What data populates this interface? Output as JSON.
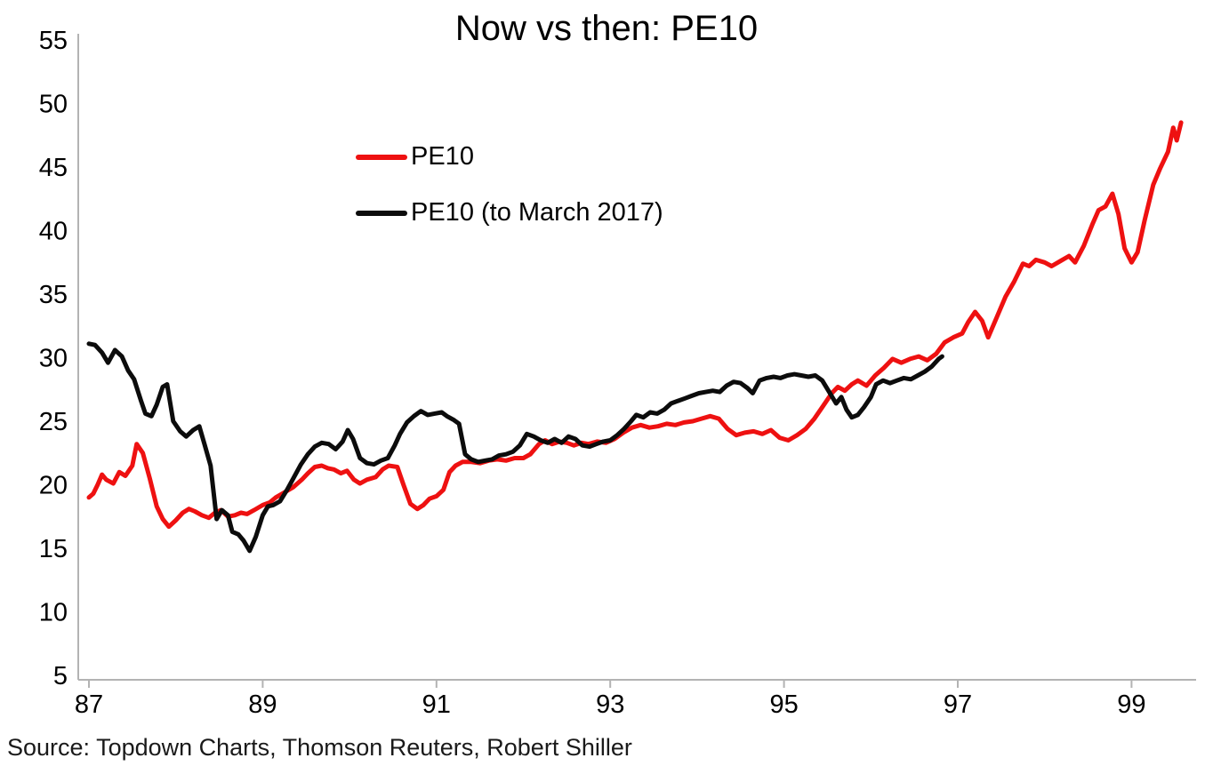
{
  "title": "Now vs then: PE10",
  "source": "Source: Topdown Charts, Thomson Reuters, Robert Shiller",
  "legend": [
    {
      "label": "PE10",
      "color": "#ee1111"
    },
    {
      "label": "PE10 (to March 2017)",
      "color": "#0c0c0c"
    }
  ],
  "chart_data": {
    "type": "line",
    "title": "Now vs then: PE10",
    "xlabel": "",
    "ylabel": "",
    "xlim": [
      86.85,
      99.8
    ],
    "ylim": [
      5,
      55
    ],
    "xticks": [
      87,
      89,
      91,
      93,
      95,
      97,
      99
    ],
    "yticks": [
      5,
      10,
      15,
      20,
      25,
      30,
      35,
      40,
      45,
      50,
      55
    ],
    "grid": false,
    "legend_position": "upper-left-inside",
    "axis_color": "#b3b3b3",
    "series": [
      {
        "name": "PE10",
        "color": "#ee1111",
        "points": [
          [
            87.0,
            19.0
          ],
          [
            87.05,
            19.3
          ],
          [
            87.1,
            20.0
          ],
          [
            87.15,
            20.8
          ],
          [
            87.2,
            20.4
          ],
          [
            87.28,
            20.1
          ],
          [
            87.35,
            21.0
          ],
          [
            87.42,
            20.7
          ],
          [
            87.5,
            21.5
          ],
          [
            87.55,
            23.2
          ],
          [
            87.62,
            22.5
          ],
          [
            87.7,
            20.5
          ],
          [
            87.78,
            18.3
          ],
          [
            87.85,
            17.3
          ],
          [
            87.92,
            16.7
          ],
          [
            88.0,
            17.2
          ],
          [
            88.08,
            17.8
          ],
          [
            88.15,
            18.1
          ],
          [
            88.22,
            17.9
          ],
          [
            88.3,
            17.6
          ],
          [
            88.38,
            17.4
          ],
          [
            88.45,
            17.8
          ],
          [
            88.52,
            18.0
          ],
          [
            88.6,
            17.5
          ],
          [
            88.68,
            17.6
          ],
          [
            88.75,
            17.8
          ],
          [
            88.82,
            17.7
          ],
          [
            88.9,
            18.0
          ],
          [
            89.0,
            18.4
          ],
          [
            89.08,
            18.6
          ],
          [
            89.15,
            19.0
          ],
          [
            89.25,
            19.4
          ],
          [
            89.35,
            19.8
          ],
          [
            89.45,
            20.4
          ],
          [
            89.52,
            20.9
          ],
          [
            89.6,
            21.4
          ],
          [
            89.68,
            21.5
          ],
          [
            89.75,
            21.3
          ],
          [
            89.82,
            21.2
          ],
          [
            89.9,
            20.9
          ],
          [
            89.97,
            21.1
          ],
          [
            90.05,
            20.4
          ],
          [
            90.12,
            20.1
          ],
          [
            90.2,
            20.4
          ],
          [
            90.3,
            20.6
          ],
          [
            90.38,
            21.2
          ],
          [
            90.45,
            21.5
          ],
          [
            90.55,
            21.4
          ],
          [
            90.62,
            20.0
          ],
          [
            90.7,
            18.5
          ],
          [
            90.78,
            18.1
          ],
          [
            90.85,
            18.4
          ],
          [
            90.92,
            18.9
          ],
          [
            91.0,
            19.1
          ],
          [
            91.08,
            19.6
          ],
          [
            91.15,
            21.0
          ],
          [
            91.22,
            21.5
          ],
          [
            91.3,
            21.8
          ],
          [
            91.4,
            21.8
          ],
          [
            91.5,
            21.7
          ],
          [
            91.6,
            21.9
          ],
          [
            91.7,
            22.0
          ],
          [
            91.8,
            21.9
          ],
          [
            91.9,
            22.1
          ],
          [
            92.0,
            22.1
          ],
          [
            92.08,
            22.4
          ],
          [
            92.18,
            23.2
          ],
          [
            92.25,
            23.5
          ],
          [
            92.33,
            23.2
          ],
          [
            92.42,
            23.4
          ],
          [
            92.5,
            23.3
          ],
          [
            92.58,
            23.1
          ],
          [
            92.67,
            23.3
          ],
          [
            92.75,
            23.2
          ],
          [
            92.85,
            23.4
          ],
          [
            92.95,
            23.3
          ],
          [
            93.05,
            23.6
          ],
          [
            93.15,
            24.1
          ],
          [
            93.25,
            24.5
          ],
          [
            93.35,
            24.7
          ],
          [
            93.45,
            24.5
          ],
          [
            93.55,
            24.6
          ],
          [
            93.65,
            24.8
          ],
          [
            93.75,
            24.7
          ],
          [
            93.85,
            24.9
          ],
          [
            93.95,
            25.0
          ],
          [
            94.05,
            25.2
          ],
          [
            94.15,
            25.4
          ],
          [
            94.25,
            25.2
          ],
          [
            94.35,
            24.4
          ],
          [
            94.45,
            23.9
          ],
          [
            94.55,
            24.1
          ],
          [
            94.65,
            24.2
          ],
          [
            94.75,
            24.0
          ],
          [
            94.85,
            24.3
          ],
          [
            94.95,
            23.7
          ],
          [
            95.05,
            23.5
          ],
          [
            95.15,
            23.9
          ],
          [
            95.25,
            24.4
          ],
          [
            95.35,
            25.2
          ],
          [
            95.45,
            26.2
          ],
          [
            95.55,
            27.2
          ],
          [
            95.62,
            27.7
          ],
          [
            95.7,
            27.4
          ],
          [
            95.78,
            27.9
          ],
          [
            95.85,
            28.2
          ],
          [
            95.95,
            27.8
          ],
          [
            96.05,
            28.6
          ],
          [
            96.15,
            29.2
          ],
          [
            96.25,
            29.9
          ],
          [
            96.35,
            29.6
          ],
          [
            96.45,
            29.9
          ],
          [
            96.55,
            30.1
          ],
          [
            96.65,
            29.8
          ],
          [
            96.75,
            30.3
          ],
          [
            96.85,
            31.2
          ],
          [
            96.95,
            31.6
          ],
          [
            97.05,
            31.9
          ],
          [
            97.12,
            32.8
          ],
          [
            97.2,
            33.6
          ],
          [
            97.28,
            32.9
          ],
          [
            97.35,
            31.6
          ],
          [
            97.45,
            33.2
          ],
          [
            97.55,
            34.8
          ],
          [
            97.65,
            36.0
          ],
          [
            97.75,
            37.4
          ],
          [
            97.82,
            37.2
          ],
          [
            97.9,
            37.7
          ],
          [
            98.0,
            37.5
          ],
          [
            98.08,
            37.2
          ],
          [
            98.18,
            37.6
          ],
          [
            98.28,
            38.0
          ],
          [
            98.35,
            37.5
          ],
          [
            98.45,
            38.8
          ],
          [
            98.55,
            40.5
          ],
          [
            98.62,
            41.6
          ],
          [
            98.7,
            41.9
          ],
          [
            98.78,
            42.9
          ],
          [
            98.85,
            41.3
          ],
          [
            98.92,
            38.6
          ],
          [
            99.0,
            37.5
          ],
          [
            99.07,
            38.3
          ],
          [
            99.15,
            40.8
          ],
          [
            99.25,
            43.6
          ],
          [
            99.33,
            44.9
          ],
          [
            99.42,
            46.2
          ],
          [
            99.48,
            48.1
          ],
          [
            99.52,
            47.1
          ],
          [
            99.57,
            48.5
          ]
        ]
      },
      {
        "name": "PE10 (to March 2017)",
        "color": "#0c0c0c",
        "points": [
          [
            87.0,
            31.1
          ],
          [
            87.07,
            31.0
          ],
          [
            87.15,
            30.4
          ],
          [
            87.22,
            29.6
          ],
          [
            87.3,
            30.6
          ],
          [
            87.38,
            30.1
          ],
          [
            87.45,
            29.0
          ],
          [
            87.52,
            28.3
          ],
          [
            87.6,
            26.6
          ],
          [
            87.65,
            25.6
          ],
          [
            87.72,
            25.4
          ],
          [
            87.78,
            26.3
          ],
          [
            87.85,
            27.7
          ],
          [
            87.9,
            27.9
          ],
          [
            87.97,
            25.0
          ],
          [
            88.05,
            24.2
          ],
          [
            88.12,
            23.8
          ],
          [
            88.2,
            24.3
          ],
          [
            88.27,
            24.6
          ],
          [
            88.33,
            23.2
          ],
          [
            88.4,
            21.5
          ],
          [
            88.47,
            17.3
          ],
          [
            88.53,
            18.0
          ],
          [
            88.6,
            17.6
          ],
          [
            88.65,
            16.3
          ],
          [
            88.72,
            16.1
          ],
          [
            88.78,
            15.6
          ],
          [
            88.85,
            14.8
          ],
          [
            88.92,
            15.9
          ],
          [
            89.0,
            17.6
          ],
          [
            89.06,
            18.3
          ],
          [
            89.12,
            18.4
          ],
          [
            89.2,
            18.7
          ],
          [
            89.28,
            19.6
          ],
          [
            89.36,
            20.6
          ],
          [
            89.44,
            21.6
          ],
          [
            89.52,
            22.4
          ],
          [
            89.6,
            23.0
          ],
          [
            89.68,
            23.3
          ],
          [
            89.76,
            23.2
          ],
          [
            89.84,
            22.8
          ],
          [
            89.92,
            23.4
          ],
          [
            89.98,
            24.3
          ],
          [
            90.04,
            23.6
          ],
          [
            90.12,
            22.1
          ],
          [
            90.2,
            21.7
          ],
          [
            90.28,
            21.6
          ],
          [
            90.36,
            21.9
          ],
          [
            90.44,
            22.1
          ],
          [
            90.52,
            23.1
          ],
          [
            90.58,
            24.0
          ],
          [
            90.66,
            24.9
          ],
          [
            90.74,
            25.4
          ],
          [
            90.82,
            25.8
          ],
          [
            90.9,
            25.5
          ],
          [
            90.98,
            25.6
          ],
          [
            91.06,
            25.7
          ],
          [
            91.12,
            25.4
          ],
          [
            91.2,
            25.1
          ],
          [
            91.26,
            24.8
          ],
          [
            91.33,
            22.4
          ],
          [
            91.4,
            22.0
          ],
          [
            91.48,
            21.8
          ],
          [
            91.56,
            21.9
          ],
          [
            91.64,
            22.0
          ],
          [
            91.72,
            22.3
          ],
          [
            91.8,
            22.4
          ],
          [
            91.88,
            22.6
          ],
          [
            91.96,
            23.1
          ],
          [
            92.04,
            24.0
          ],
          [
            92.12,
            23.8
          ],
          [
            92.2,
            23.5
          ],
          [
            92.28,
            23.3
          ],
          [
            92.36,
            23.6
          ],
          [
            92.44,
            23.3
          ],
          [
            92.52,
            23.8
          ],
          [
            92.6,
            23.6
          ],
          [
            92.68,
            23.1
          ],
          [
            92.76,
            23.0
          ],
          [
            92.84,
            23.2
          ],
          [
            92.92,
            23.4
          ],
          [
            93.0,
            23.5
          ],
          [
            93.08,
            23.9
          ],
          [
            93.16,
            24.4
          ],
          [
            93.24,
            25.0
          ],
          [
            93.3,
            25.5
          ],
          [
            93.38,
            25.3
          ],
          [
            93.46,
            25.7
          ],
          [
            93.54,
            25.6
          ],
          [
            93.62,
            25.9
          ],
          [
            93.7,
            26.4
          ],
          [
            93.78,
            26.6
          ],
          [
            93.86,
            26.8
          ],
          [
            93.94,
            27.0
          ],
          [
            94.02,
            27.2
          ],
          [
            94.1,
            27.3
          ],
          [
            94.18,
            27.4
          ],
          [
            94.26,
            27.3
          ],
          [
            94.34,
            27.8
          ],
          [
            94.42,
            28.1
          ],
          [
            94.5,
            28.0
          ],
          [
            94.58,
            27.6
          ],
          [
            94.64,
            27.2
          ],
          [
            94.72,
            28.2
          ],
          [
            94.8,
            28.4
          ],
          [
            94.88,
            28.5
          ],
          [
            94.96,
            28.4
          ],
          [
            95.04,
            28.6
          ],
          [
            95.12,
            28.7
          ],
          [
            95.2,
            28.6
          ],
          [
            95.28,
            28.5
          ],
          [
            95.36,
            28.6
          ],
          [
            95.44,
            28.2
          ],
          [
            95.52,
            27.3
          ],
          [
            95.6,
            26.4
          ],
          [
            95.66,
            26.9
          ],
          [
            95.72,
            25.9
          ],
          [
            95.78,
            25.3
          ],
          [
            95.85,
            25.5
          ],
          [
            95.92,
            26.1
          ],
          [
            96.0,
            26.9
          ],
          [
            96.06,
            27.9
          ],
          [
            96.14,
            28.2
          ],
          [
            96.22,
            28.0
          ],
          [
            96.3,
            28.2
          ],
          [
            96.38,
            28.4
          ],
          [
            96.46,
            28.3
          ],
          [
            96.54,
            28.6
          ],
          [
            96.62,
            28.9
          ],
          [
            96.7,
            29.3
          ],
          [
            96.78,
            29.9
          ],
          [
            96.82,
            30.1
          ]
        ]
      }
    ]
  }
}
